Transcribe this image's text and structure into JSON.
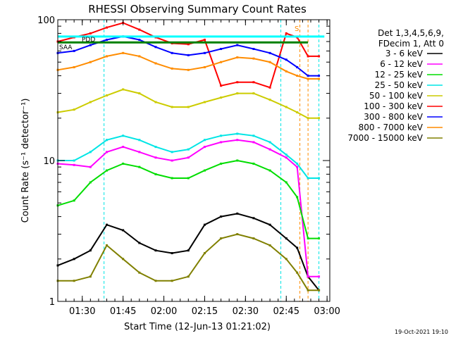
{
  "chart_data": {
    "type": "line",
    "title": "RHESSI Observing Summary Count Rates",
    "xlabel": "Start Time (12-Jun-13 01:21:02)",
    "ylabel": "Count Rate (s⁻¹ detector⁻¹)",
    "yscale": "log",
    "ylim": [
      1,
      100
    ],
    "xlim_minutes": [
      0,
      100
    ],
    "x_unit": "minutes after 01:21:02",
    "x_ticks": [
      {
        "label": "01:30",
        "minute": 9
      },
      {
        "label": "01:45",
        "minute": 24
      },
      {
        "label": "02:00",
        "minute": 39
      },
      {
        "label": "02:15",
        "minute": 54
      },
      {
        "label": "02:30",
        "minute": 69
      },
      {
        "label": "02:45",
        "minute": 84
      },
      {
        "label": "03:00",
        "minute": 99
      }
    ],
    "y_ticks": [
      {
        "label": "1",
        "value": 1
      },
      {
        "label": "10",
        "value": 10
      },
      {
        "label": "100",
        "value": 100
      }
    ],
    "grid": false,
    "legend_position": "right",
    "legend_header": [
      "Det 1,3,4,5,6,9,",
      "FDecim 1, Att 0"
    ],
    "annotations": [
      "S",
      "SAA",
      "PDD"
    ],
    "footer_date": "19-Oct-2021 19:10",
    "series": [
      {
        "name": "3 - 6 keV",
        "color": "#000000",
        "x": [
          0,
          6,
          12,
          18,
          24,
          30,
          36,
          42,
          48,
          54,
          60,
          66,
          72,
          78,
          84,
          88,
          92,
          96
        ],
        "y": [
          1.8,
          2.0,
          2.3,
          3.5,
          3.2,
          2.6,
          2.3,
          2.2,
          2.3,
          3.5,
          4.0,
          4.2,
          3.9,
          3.5,
          2.8,
          2.4,
          1.5,
          1.2
        ]
      },
      {
        "name": "6 - 12 keV",
        "color": "#ff00ff",
        "x": [
          0,
          6,
          12,
          18,
          24,
          30,
          36,
          42,
          48,
          54,
          60,
          66,
          72,
          78,
          84,
          88,
          92,
          96
        ],
        "y": [
          9.5,
          9.3,
          9.0,
          11.5,
          12.5,
          11.5,
          10.5,
          10.0,
          10.5,
          12.5,
          13.5,
          14.0,
          13.5,
          12.0,
          10.5,
          9.0,
          1.5,
          1.5
        ]
      },
      {
        "name": "12 - 25 keV",
        "color": "#00dd00",
        "x": [
          0,
          6,
          12,
          18,
          24,
          30,
          36,
          42,
          48,
          54,
          60,
          66,
          72,
          78,
          84,
          88,
          92,
          96
        ],
        "y": [
          4.8,
          5.2,
          7.0,
          8.5,
          9.5,
          9.0,
          8.0,
          7.5,
          7.5,
          8.5,
          9.5,
          10.0,
          9.5,
          8.5,
          7.0,
          5.5,
          2.8,
          2.8
        ]
      },
      {
        "name": "25 - 50 keV",
        "color": "#00e5e5",
        "x": [
          0,
          6,
          12,
          18,
          24,
          30,
          36,
          42,
          48,
          54,
          60,
          66,
          72,
          78,
          84,
          88,
          92,
          96
        ],
        "y": [
          10.0,
          10.0,
          11.5,
          14.0,
          15.0,
          14.0,
          12.5,
          11.5,
          12.0,
          14.0,
          15.0,
          15.5,
          15.0,
          13.5,
          11.0,
          9.5,
          7.5,
          7.5
        ]
      },
      {
        "name": "50 - 100 keV",
        "color": "#cccc00",
        "x": [
          0,
          6,
          12,
          18,
          24,
          30,
          36,
          42,
          48,
          54,
          60,
          66,
          72,
          78,
          84,
          88,
          92,
          96
        ],
        "y": [
          22,
          23,
          26,
          29,
          32,
          30,
          26,
          24,
          24,
          26,
          28,
          30,
          30,
          27,
          24,
          22,
          20,
          20
        ]
      },
      {
        "name": "100 - 300 keV",
        "color": "#ff0000",
        "x": [
          0,
          6,
          12,
          18,
          24,
          30,
          36,
          42,
          48,
          54,
          60,
          66,
          72,
          78,
          84,
          88,
          92,
          96
        ],
        "y": [
          70,
          75,
          80,
          88,
          95,
          85,
          75,
          68,
          67,
          72,
          34,
          36,
          36,
          33,
          80,
          75,
          55,
          55
        ]
      },
      {
        "name": "300 - 800 keV",
        "color": "#0000ff",
        "x": [
          0,
          6,
          12,
          18,
          24,
          30,
          36,
          42,
          48,
          54,
          60,
          66,
          72,
          78,
          84,
          88,
          92,
          96
        ],
        "y": [
          58,
          60,
          66,
          72,
          76,
          72,
          64,
          58,
          56,
          58,
          62,
          66,
          62,
          58,
          52,
          46,
          40,
          40
        ]
      },
      {
        "name": "800 - 7000 keV",
        "color": "#ff8c00",
        "x": [
          0,
          6,
          12,
          18,
          24,
          30,
          36,
          42,
          48,
          54,
          60,
          66,
          72,
          78,
          84,
          88,
          92,
          96
        ],
        "y": [
          44,
          46,
          50,
          55,
          58,
          55,
          49,
          45,
          44,
          46,
          50,
          54,
          53,
          50,
          43,
          40,
          38,
          38
        ]
      },
      {
        "name": "7000 - 15000 keV",
        "color": "#808000",
        "x": [
          0,
          6,
          12,
          18,
          24,
          30,
          36,
          42,
          48,
          54,
          60,
          66,
          72,
          78,
          84,
          88,
          92,
          96
        ],
        "y": [
          1.4,
          1.4,
          1.5,
          2.5,
          2.0,
          1.6,
          1.4,
          1.4,
          1.5,
          2.2,
          2.8,
          3.0,
          2.8,
          2.5,
          2.0,
          1.6,
          1.2,
          1.2
        ]
      }
    ],
    "reference_lines": [
      {
        "color": "#00ffff",
        "y": 76,
        "x_from": 0,
        "x_to": 98
      },
      {
        "color": "#008000",
        "y": 69,
        "x_from": 0,
        "x_to": 92
      }
    ],
    "marker_lines": [
      {
        "color": "#00e5e5",
        "style": "dashed",
        "minute": 17
      },
      {
        "color": "#00e5e5",
        "style": "dashed",
        "minute": 82
      },
      {
        "color": "#00e5e5",
        "style": "dashed",
        "minute": 96
      },
      {
        "color": "#ff8c00",
        "style": "dashed",
        "minute": 89
      },
      {
        "color": "#ff8c00",
        "style": "dashed",
        "minute": 92
      }
    ]
  }
}
